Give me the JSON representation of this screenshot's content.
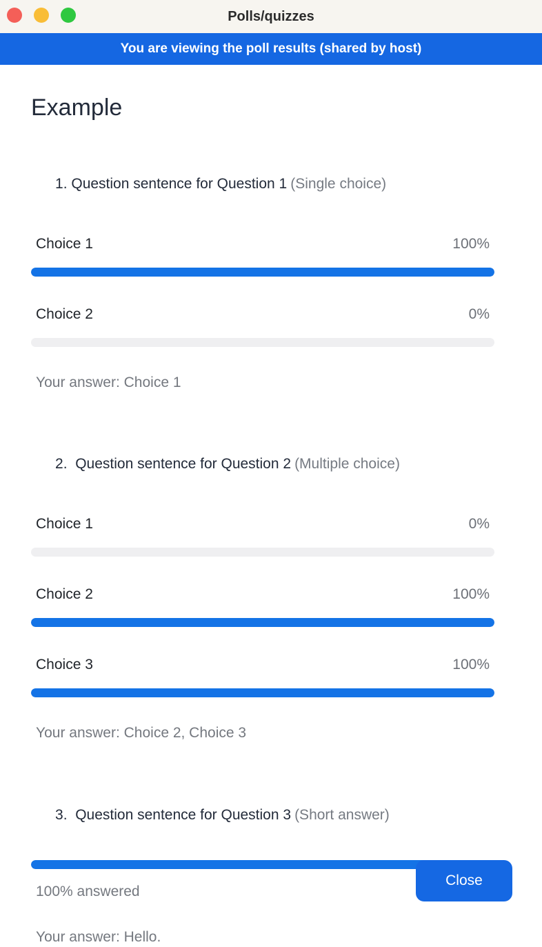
{
  "window": {
    "title": "Polls/quizzes",
    "banner": "You are viewing the poll results (shared by host)"
  },
  "poll": {
    "title": "Example",
    "questions": [
      {
        "title": "1. Question sentence for Question 1",
        "type": "(Single choice)",
        "choices": [
          {
            "label": "Choice 1",
            "percent": "100%",
            "value": 100
          },
          {
            "label": "Choice 2",
            "percent": "0%",
            "value": 0
          }
        ],
        "your_answer": "Your answer: Choice 1"
      },
      {
        "title": "2.  Question sentence for Question 2",
        "type": "(Multiple choice)",
        "choices": [
          {
            "label": "Choice 1",
            "percent": "0%",
            "value": 0
          },
          {
            "label": "Choice 2",
            "percent": "100%",
            "value": 100
          },
          {
            "label": "Choice 3",
            "percent": "100%",
            "value": 100
          }
        ],
        "your_answer": "Your answer: Choice 2, Choice 3"
      },
      {
        "title": "3.  Question sentence for Question 3",
        "type": "(Short answer)",
        "answered_value": 100,
        "answered_text": "100% answered",
        "your_answer": "Your answer: Hello."
      }
    ]
  },
  "footer": {
    "close_label": "Close"
  },
  "colors": {
    "accent_blue": "#1567e2",
    "bar_blue": "#1473e6",
    "bar_track": "#efeff1",
    "titlebar_bg": "#f7f5f0",
    "traffic_red": "#f45f58",
    "traffic_yellow": "#f9bd37",
    "traffic_green": "#2fc840"
  }
}
